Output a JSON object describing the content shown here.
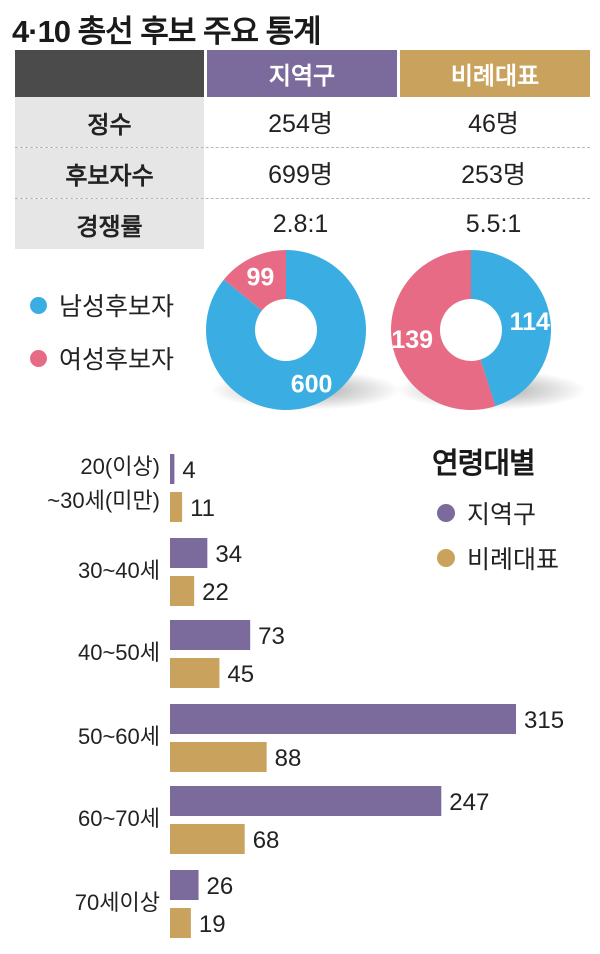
{
  "title": "4·10 총선 후보 주요 통계",
  "colors": {
    "district": "#7a6b9c",
    "proportional": "#c9a35e",
    "male": "#3aaee3",
    "female": "#e86b85",
    "table_head": "#4b4b4b",
    "table_label_bg": "#e6e6e6"
  },
  "table": {
    "headers": [
      "",
      "지역구",
      "비례대표"
    ],
    "rows": [
      {
        "label": "정수",
        "district": "254명",
        "proportional": "46명"
      },
      {
        "label": "후보자수",
        "district": "699명",
        "proportional": "253명"
      },
      {
        "label": "경쟁률",
        "district": "2.8:1",
        "proportional": "5.5:1"
      }
    ]
  },
  "gender": {
    "legend": [
      {
        "label": "남성후보자",
        "color": "#3aaee3"
      },
      {
        "label": "여성후보자",
        "color": "#e86b85"
      }
    ]
  },
  "chart_data": [
    {
      "type": "pie",
      "donut": true,
      "categories": [
        "남성후보자",
        "여성후보자"
      ],
      "values": [
        600,
        99
      ],
      "colors": [
        "#3aaee3",
        "#e86b85"
      ],
      "data_labels": [
        "600",
        "99"
      ]
    },
    {
      "type": "pie",
      "donut": true,
      "categories": [
        "남성후보자",
        "여성후보자"
      ],
      "values": [
        114,
        139
      ],
      "colors": [
        "#3aaee3",
        "#e86b85"
      ],
      "data_labels": [
        "114",
        "139"
      ]
    },
    {
      "type": "bar",
      "orientation": "horizontal",
      "title": "연령대별",
      "categories": [
        [
          "20(이상)",
          "~30세(미만)"
        ],
        [
          "30~40세"
        ],
        [
          "40~50세"
        ],
        [
          "50~60세"
        ],
        [
          "60~70세"
        ],
        [
          "70세이상"
        ]
      ],
      "series": [
        {
          "name": "지역구",
          "color": "#7a6b9c",
          "values": [
            4,
            34,
            73,
            315,
            247,
            26
          ]
        },
        {
          "name": "비례대표",
          "color": "#c9a35e",
          "values": [
            11,
            22,
            45,
            88,
            68,
            19
          ]
        }
      ],
      "xlim": [
        0,
        315
      ],
      "legend": "top-right"
    }
  ]
}
